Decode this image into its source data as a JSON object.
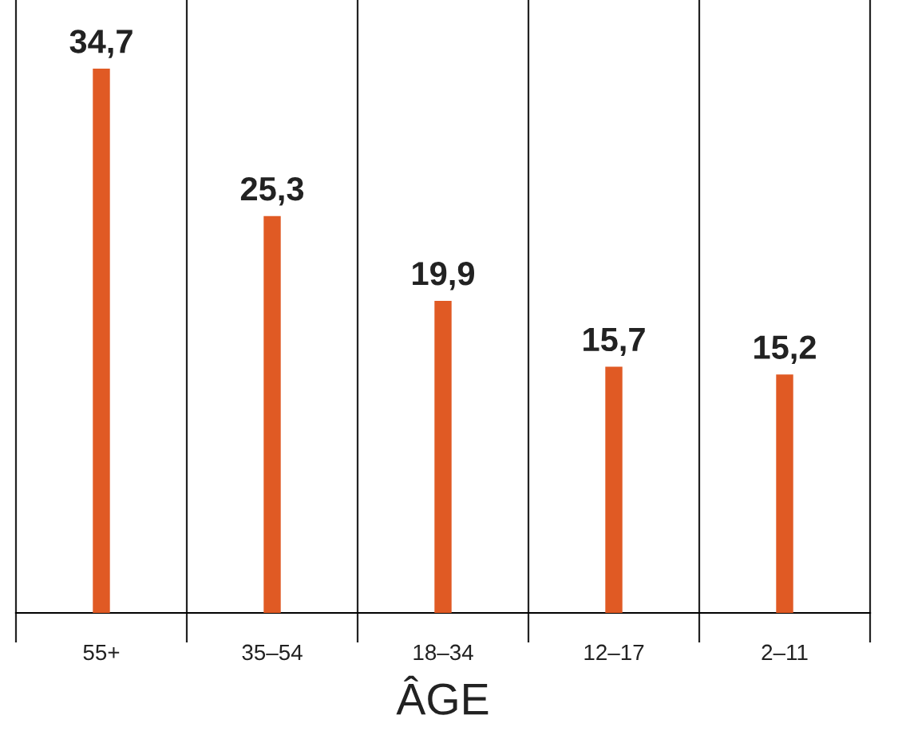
{
  "chart_data": {
    "type": "bar",
    "xlabel": "ÂGE",
    "categories": [
      "55+",
      "35–54",
      "18–34",
      "12–17",
      "2–11"
    ],
    "values": [
      34.7,
      25.3,
      19.9,
      15.7,
      15.2
    ],
    "value_labels": [
      "34,7",
      "25,3",
      "19,9",
      "15,7",
      "15,2"
    ],
    "color": "#e05a24",
    "grid": "x"
  }
}
